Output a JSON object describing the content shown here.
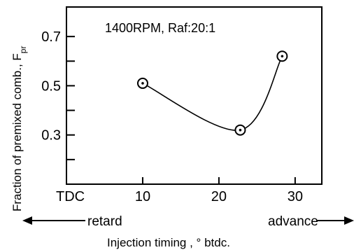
{
  "chart_data": {
    "type": "scatter",
    "annotation": "1400RPM, Raf:20:1",
    "ylabel": "Fraction of premixed comb., F",
    "ylabel_sub": "pr",
    "xlabel": "Injection timing , ° btdc.",
    "x_ticks": [
      "TDC",
      "10",
      "20",
      "30"
    ],
    "x_tick_values": [
      0,
      10,
      20,
      30
    ],
    "y_ticks": [
      "0.3",
      "0.5",
      "0.7"
    ],
    "y_tick_values": [
      0.3,
      0.5,
      0.7
    ],
    "direction_left": "retard",
    "direction_right": "advance",
    "xlim": [
      0,
      33.5
    ],
    "ylim": [
      0.1,
      0.82
    ],
    "series": [
      {
        "points": [
          {
            "x": 10.0,
            "y": 0.51
          },
          {
            "x": 22.8,
            "y": 0.32
          },
          {
            "x": 28.3,
            "y": 0.62
          }
        ],
        "curve": true
      }
    ],
    "grid": false,
    "legend": "none"
  }
}
